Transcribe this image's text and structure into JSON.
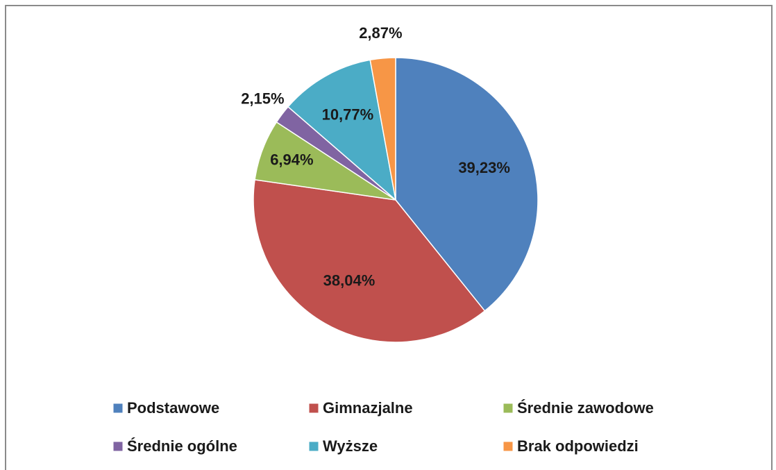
{
  "chart_data": {
    "type": "pie",
    "categories": [
      "Podstawowe",
      "Gimnazjalne",
      "Średnie zawodowe",
      "Średnie ogólne",
      "Wyższe",
      "Brak odpowiedzi"
    ],
    "values": [
      39.23,
      38.04,
      6.94,
      2.15,
      10.77,
      2.87
    ],
    "value_labels": [
      "39,23%",
      "38,04%",
      "6,94%",
      "2,15%",
      "10,77%",
      "2,87%"
    ],
    "colors": [
      "#4f81bd",
      "#c0504d",
      "#9bbb59",
      "#8064a2",
      "#4bacc6",
      "#f79646"
    ],
    "legend": "bottom"
  }
}
